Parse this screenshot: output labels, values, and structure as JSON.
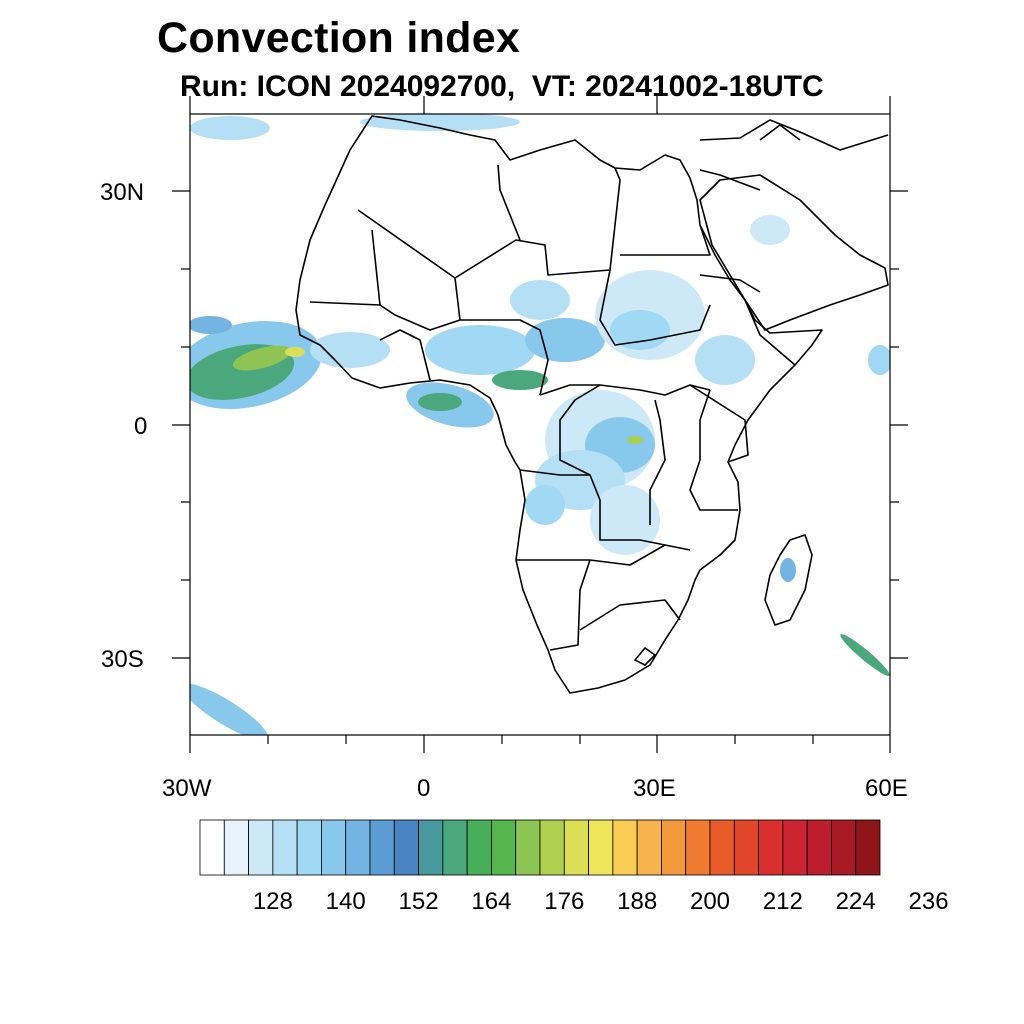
{
  "title": "Convection index",
  "subtitle": "Run: ICON 2024092700,  VT: 20241002-18UTC",
  "map": {
    "region": "Africa",
    "lon_range": [
      -30,
      60
    ],
    "lat_range": [
      -40,
      40
    ],
    "y_labels": [
      "30N",
      "0",
      "30S"
    ],
    "x_labels": [
      "30W",
      "0",
      "30E",
      "60E"
    ]
  },
  "colorbar": {
    "labels": [
      "128",
      "140",
      "152",
      "164",
      "176",
      "188",
      "200",
      "212",
      "224",
      "236"
    ],
    "colors": [
      "#ffffff",
      "#e8f4fb",
      "#cde9f7",
      "#b5dff5",
      "#a1d8f4",
      "#88c8ec",
      "#74b4e2",
      "#5b9cd4",
      "#4a84c2",
      "#47999d",
      "#4aa87c",
      "#47ae5a",
      "#55b64d",
      "#8ec453",
      "#aed04f",
      "#dbdf55",
      "#f0e45b",
      "#f9cc53",
      "#f5b44d",
      "#f39a3d",
      "#ef7a30",
      "#e95c2a",
      "#e2462a",
      "#d92f2d",
      "#cc2430",
      "#bd1d2c",
      "#a81a24",
      "#8e1519"
    ]
  }
}
